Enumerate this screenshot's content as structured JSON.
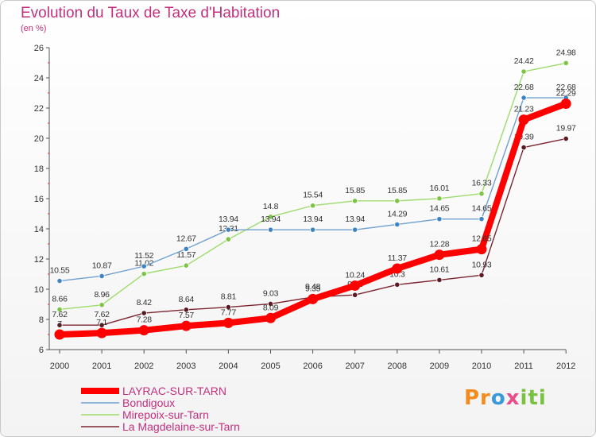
{
  "chart_data": {
    "type": "line",
    "title": "Evolution du Taux de Taxe d'Habitation",
    "subtitle": "(en %)",
    "x": [
      "2000",
      "2001",
      "2002",
      "2003",
      "2004",
      "2005",
      "2006",
      "2007",
      "2008",
      "2009",
      "2010",
      "2011",
      "2012"
    ],
    "ylim": [
      6,
      26
    ],
    "yticks": [
      6,
      8,
      10,
      12,
      14,
      16,
      18,
      20,
      22,
      24,
      26
    ],
    "grid": false,
    "legend_position": "bottom-left",
    "series": [
      {
        "name": "LAYRAC-SUR-TARN",
        "color": "#ff0000",
        "marker_color": "#ff0000",
        "values": [
          7.0,
          7.1,
          7.28,
          7.57,
          7.77,
          8.09,
          9.35,
          10.24,
          11.37,
          12.28,
          12.65,
          21.23,
          22.29
        ],
        "labels": [
          "7",
          "7.1",
          "7.28",
          "7.57",
          "7.77",
          "8.09",
          "9.35",
          "10.24",
          "11.37",
          "12.28",
          "12.65",
          "21.23",
          "22.29"
        ]
      },
      {
        "name": "Bondigoux",
        "color": "#6fa0cf",
        "marker_color": "#3f84c2",
        "values": [
          10.55,
          10.87,
          11.52,
          12.67,
          13.94,
          13.94,
          13.94,
          13.94,
          14.29,
          14.65,
          14.65,
          22.68,
          22.68
        ],
        "labels": [
          "10.55",
          "10.87",
          "11.52",
          "12.67",
          "13.94",
          "13.94",
          "13.94",
          "13.94",
          "14.29",
          "14.65",
          "14.65",
          "22.68",
          "22.68"
        ]
      },
      {
        "name": "Mirepoix-sur-Tarn",
        "color": "#9edb6c",
        "marker_color": "#7dc346",
        "values": [
          8.66,
          8.96,
          11.02,
          11.57,
          13.31,
          14.8,
          15.54,
          15.85,
          15.85,
          16.01,
          16.33,
          24.42,
          24.98
        ],
        "labels": [
          "8.66",
          "8.96",
          "11.02",
          "11.57",
          "13.31",
          "14.8",
          "15.54",
          "15.85",
          "15.85",
          "16.01",
          "16.33",
          "24.42",
          "24.98"
        ]
      },
      {
        "name": "La Magdelaine-sur-Tarn",
        "color": "#7a2530",
        "marker_color": "#5a1a22",
        "values": [
          7.62,
          7.62,
          8.42,
          8.64,
          8.81,
          9.03,
          9.48,
          9.62,
          10.3,
          10.61,
          10.93,
          19.39,
          19.97
        ],
        "labels": [
          "7.62",
          "7.62",
          "8.42",
          "8.64",
          "8.81",
          "9.03",
          "9.48",
          "9.62",
          "10.3",
          "10.61",
          "10.93",
          "19.39",
          "19.97"
        ]
      }
    ]
  },
  "logo": {
    "p": "Pr",
    "o": "o",
    "x": "x",
    "iti": "iti"
  }
}
